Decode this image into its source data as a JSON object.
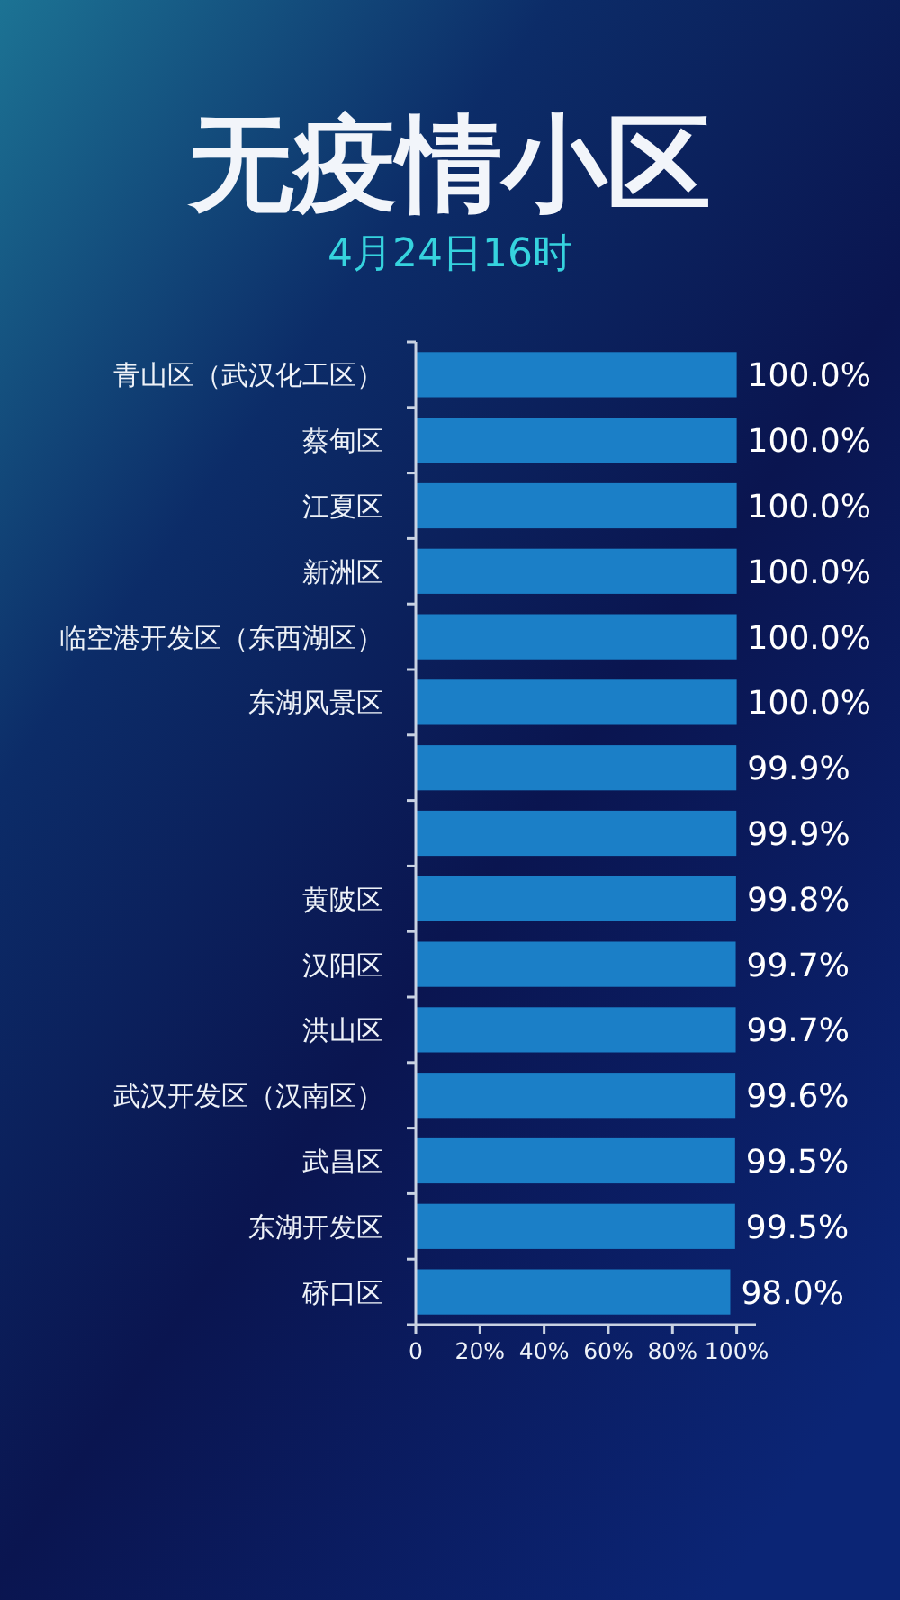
{
  "chart_data": {
    "type": "bar",
    "orientation": "horizontal",
    "title": "无疫情小区",
    "subtitle": "4月24日16时",
    "categories": [
      "青山区（武汉化工区）",
      "蔡甸区",
      "江夏区",
      "新洲区",
      "临空港开发区（东西湖区）",
      "东湖风景区",
      null,
      null,
      "黄陂区",
      "汉阳区",
      "洪山区",
      "武汉开发区（汉南区）",
      "武昌区",
      "东湖开发区",
      "硚口区"
    ],
    "values": [
      100,
      100,
      100,
      100,
      100,
      100,
      99.9,
      99.9,
      99.8,
      99.7,
      99.7,
      99.6,
      99.5,
      99.5,
      98.0
    ],
    "value_labels": [
      "100.0%",
      "100.0%",
      "100.0%",
      "100.0%",
      "100.0%",
      "100.0%",
      "99.9%",
      "99.9%",
      "99.8%",
      "99.7%",
      "99.7%",
      "99.6%",
      "99.5%",
      "99.5%",
      "98.0%"
    ],
    "color": "#1b7fc7",
    "xlim": [
      0,
      106
    ],
    "xticks": [
      0,
      {
        "value": 20,
        "label": "20%"
      },
      {
        "value": 40,
        "label": "40%"
      },
      {
        "value": 60,
        "label": "60%"
      },
      {
        "value": 80,
        "label": "80%"
      },
      {
        "value": 100,
        "label": "100%"
      }
    ]
  }
}
